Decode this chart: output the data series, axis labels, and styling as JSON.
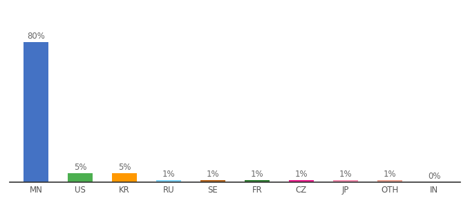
{
  "categories": [
    "MN",
    "US",
    "KR",
    "RU",
    "SE",
    "FR",
    "CZ",
    "JP",
    "OTH",
    "IN"
  ],
  "values": [
    80,
    5,
    5,
    1,
    1,
    1,
    1,
    1,
    1,
    0
  ],
  "labels": [
    "80%",
    "5%",
    "5%",
    "1%",
    "1%",
    "1%",
    "1%",
    "1%",
    "1%",
    "0%"
  ],
  "colors": [
    "#4472c4",
    "#4caf50",
    "#ff9800",
    "#81d4fa",
    "#b5651d",
    "#2e7d32",
    "#e91e8c",
    "#f48fb1",
    "#e8a090",
    "#c0c0c0"
  ],
  "title_fontsize": 10,
  "label_fontsize": 8.5,
  "tick_fontsize": 8.5,
  "ylim": [
    0,
    90
  ],
  "background_color": "#ffffff",
  "bar_width": 0.55
}
